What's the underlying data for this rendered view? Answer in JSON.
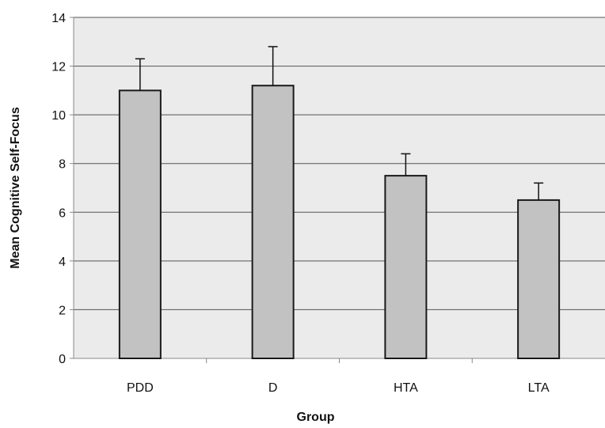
{
  "chart_data": {
    "type": "bar",
    "title": "",
    "xlabel": "Group",
    "ylabel": "Mean Cognitive Self-Focus",
    "categories": [
      "PDD",
      "D",
      "HTA",
      "LTA"
    ],
    "values": [
      11.0,
      11.2,
      7.5,
      6.5
    ],
    "error_upper": [
      12.3,
      12.8,
      8.4,
      7.2
    ],
    "ylim": [
      0,
      14
    ],
    "yticks": [
      0,
      2,
      4,
      6,
      8,
      10,
      12,
      14
    ],
    "grid": true,
    "legend": "none",
    "colors": {
      "bar_fill": "#c2c2c2",
      "bar_stroke": "#1a1a1a",
      "plot_bg": "#ebebeb",
      "grid": "#555555",
      "axis": "#888888"
    }
  }
}
